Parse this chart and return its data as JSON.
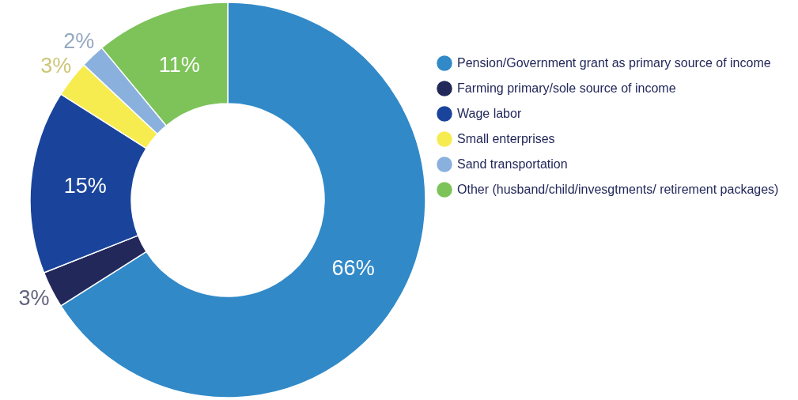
{
  "chart_data": {
    "type": "donut",
    "categories": [
      "Pension/Government grant as primary source of income",
      "Farming primary/sole source of income",
      "Wage labor",
      "Small enterprises",
      "Sand transportation",
      "Other (husband/child/invesgtments/ retirement packages)"
    ],
    "values": [
      66,
      3,
      15,
      3,
      2,
      11
    ],
    "value_labels": [
      "66%",
      "3%",
      "15%",
      "3%",
      "2%",
      "11%"
    ],
    "colors": [
      "#3189c8",
      "#22285a",
      "#1a449b",
      "#f7ec4f",
      "#8ab1dd",
      "#7dc35a"
    ],
    "legend": "right"
  }
}
